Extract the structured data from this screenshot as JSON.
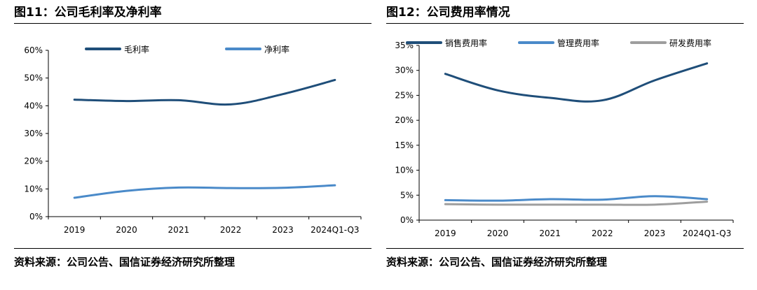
{
  "figures": [
    {
      "title": "图11：公司毛利率及净利率",
      "source": "资料来源：公司公告、国信证券经济研究所整理"
    },
    {
      "title": "图12：公司费用率情况",
      "source": "资料来源：公司公告、国信证券经济研究所整理"
    }
  ],
  "chart_data": [
    {
      "type": "line",
      "categories": [
        "2019",
        "2020",
        "2021",
        "2022",
        "2023",
        "2024Q1-Q3"
      ],
      "ylim": [
        0,
        60
      ],
      "yticks": [
        "0%",
        "10%",
        "20%",
        "30%",
        "40%",
        "50%",
        "60%"
      ],
      "legend_position": "top",
      "grid": false,
      "series": [
        {
          "name": "毛利率",
          "color": "#1f4e79",
          "values": [
            42.2,
            41.7,
            42.0,
            40.5,
            44.2,
            49.3
          ]
        },
        {
          "name": "净利率",
          "color": "#4a8ac9",
          "values": [
            6.8,
            9.3,
            10.5,
            10.3,
            10.4,
            11.3
          ]
        }
      ]
    },
    {
      "type": "line",
      "categories": [
        "2019",
        "2020",
        "2021",
        "2022",
        "2023",
        "2024Q1-Q3"
      ],
      "ylim": [
        0,
        35
      ],
      "yticks": [
        "0%",
        "5%",
        "10%",
        "15%",
        "20%",
        "25%",
        "30%",
        "35%"
      ],
      "legend_position": "top",
      "grid": false,
      "series": [
        {
          "name": "销售费用率",
          "color": "#1f4e79",
          "values": [
            29.3,
            26.0,
            24.5,
            24.0,
            28.0,
            31.4
          ]
        },
        {
          "name": "管理费用率",
          "color": "#4a8ac9",
          "values": [
            4.0,
            3.9,
            4.2,
            4.1,
            4.8,
            4.2
          ]
        },
        {
          "name": "研发费用率",
          "color": "#9e9e9e",
          "values": [
            3.2,
            3.1,
            3.1,
            3.1,
            3.1,
            3.7
          ]
        }
      ]
    }
  ]
}
